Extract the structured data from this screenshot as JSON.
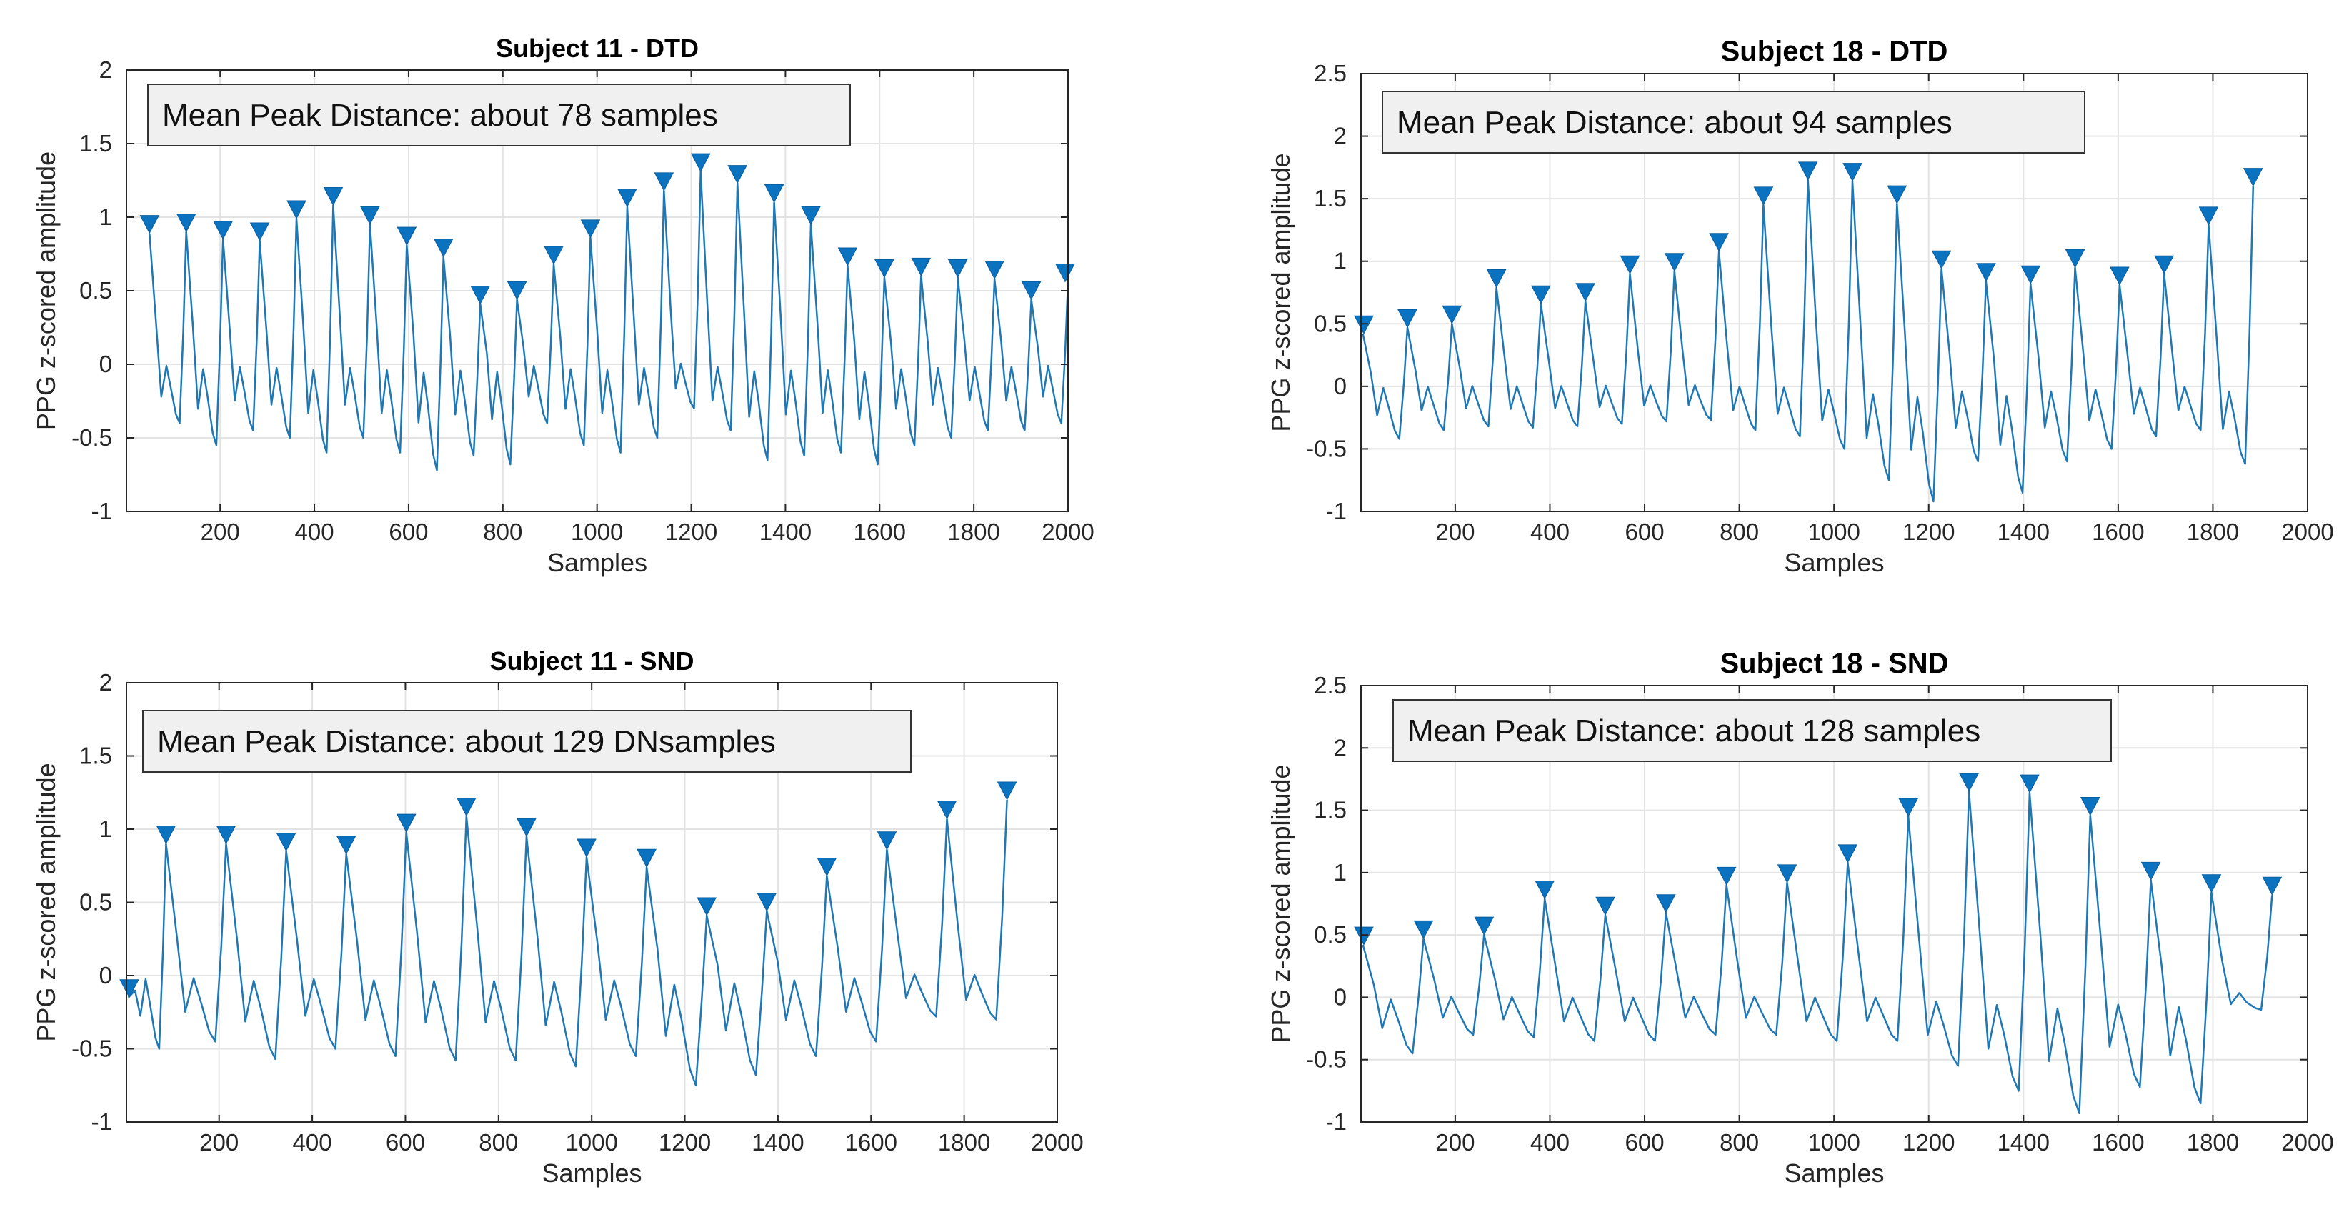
{
  "colors": {
    "line": "#1f77b4",
    "marker": "#0b72c0",
    "grid": "#e3e3e3",
    "axis": "#262626",
    "annotation_bg": "#f0f0f0"
  },
  "icons": {
    "peak_marker": "down-triangle"
  },
  "chart_data": [
    {
      "type": "line",
      "title": "Subject 11 - DTD",
      "xlabel": "Samples",
      "ylabel": "PPG z-scored amplitude",
      "annotation": "Mean Peak Distance: about 78 samples",
      "xlim": [
        1,
        2000
      ],
      "ylim": [
        -1,
        2
      ],
      "xticks": [
        200,
        400,
        600,
        800,
        1000,
        1200,
        1400,
        1600,
        1800,
        2000
      ],
      "yticks": [
        -1,
        -0.5,
        0,
        0.5,
        1,
        1.5,
        2
      ],
      "ytick_labels": [
        "-1",
        "-0.5",
        "0",
        "0.5",
        "1",
        "1.5",
        "2"
      ],
      "grid": true,
      "peaks": {
        "x": [
          50,
          128,
          206,
          284,
          362,
          440,
          518,
          596,
          674,
          752,
          830,
          908,
          986,
          1064,
          1142,
          1220,
          1298,
          1376,
          1454,
          1532,
          1610,
          1688,
          1766,
          1844,
          1922,
          2000
        ],
        "y": [
          0.89,
          0.9,
          0.85,
          0.84,
          0.99,
          1.08,
          0.95,
          0.81,
          0.73,
          0.41,
          0.44,
          0.68,
          0.86,
          1.07,
          1.18,
          1.31,
          1.23,
          1.1,
          0.95,
          0.67,
          0.59,
          0.6,
          0.59,
          0.58,
          0.44,
          0.56
        ],
        "trough": [
          -0.5,
          -0.4,
          -0.55,
          -0.45,
          -0.5,
          -0.6,
          -0.5,
          -0.6,
          -0.72,
          -0.62,
          -0.68,
          -0.4,
          -0.55,
          -0.6,
          -0.5,
          -0.3,
          -0.45,
          -0.65,
          -0.62,
          -0.6,
          -0.68,
          -0.55,
          -0.5,
          -0.45,
          -0.45,
          -0.4
        ]
      }
    },
    {
      "type": "line",
      "title": "Subject 18 - DTD",
      "xlabel": "Samples",
      "ylabel": "PPG z-scored amplitude",
      "annotation": "Mean Peak Distance: about 94 samples",
      "xlim": [
        1,
        2000
      ],
      "ylim": [
        -1,
        2.5
      ],
      "xticks": [
        200,
        400,
        600,
        800,
        1000,
        1200,
        1400,
        1600,
        1800,
        2000
      ],
      "yticks": [
        -1,
        -0.5,
        0,
        0.5,
        1,
        1.5,
        2,
        2.5
      ],
      "ytick_labels": [
        "-1",
        "-0.5",
        "0",
        "0.5",
        "1",
        "1.5",
        "2",
        "2.5"
      ],
      "grid": true,
      "peaks": {
        "x": [
          5,
          99,
          193,
          287,
          381,
          475,
          569,
          663,
          757,
          851,
          945,
          1039,
          1133,
          1227,
          1321,
          1415,
          1509,
          1603,
          1697,
          1791,
          1885
        ],
        "y": [
          0.42,
          0.47,
          0.5,
          0.79,
          0.66,
          0.68,
          0.9,
          0.92,
          1.08,
          1.45,
          1.65,
          1.64,
          1.46,
          0.94,
          0.84,
          0.82,
          0.95,
          0.81,
          0.9,
          1.29,
          1.6
        ],
        "trough": [
          -0.33,
          -0.42,
          -0.35,
          -0.32,
          -0.33,
          -0.32,
          -0.3,
          -0.28,
          -0.27,
          -0.35,
          -0.4,
          -0.5,
          -0.75,
          -0.92,
          -0.6,
          -0.85,
          -0.6,
          -0.5,
          -0.4,
          -0.35,
          -0.62
        ]
      }
    },
    {
      "type": "line",
      "title": "Subject 11 - SND",
      "xlabel": "Samples",
      "ylabel": "PPG z-scored amplitude",
      "annotation": "Mean Peak Distance: about 129 DNsamples",
      "xlim": [
        1,
        2000
      ],
      "ylim": [
        -1,
        2
      ],
      "xticks": [
        200,
        400,
        600,
        800,
        1000,
        1200,
        1400,
        1600,
        1800,
        2000
      ],
      "yticks": [
        -1,
        -0.5,
        0,
        0.5,
        1,
        1.5,
        2
      ],
      "ytick_labels": [
        "-1",
        "-0.5",
        "0",
        "0.5",
        "1",
        "1.5",
        "2"
      ],
      "grid": true,
      "peaks": {
        "x": [
          5,
          86,
          215,
          344,
          473,
          602,
          731,
          860,
          989,
          1118,
          1247,
          1376,
          1505,
          1634,
          1763,
          1892
        ],
        "y": [
          -0.15,
          0.9,
          0.9,
          0.85,
          0.83,
          0.98,
          1.09,
          0.95,
          0.81,
          0.74,
          0.41,
          0.44,
          0.68,
          0.86,
          1.07,
          1.2
        ],
        "trough": [
          -0.5,
          -0.5,
          -0.45,
          -0.57,
          -0.5,
          -0.55,
          -0.58,
          -0.58,
          -0.62,
          -0.55,
          -0.75,
          -0.68,
          -0.55,
          -0.45,
          -0.28,
          -0.3
        ]
      }
    },
    {
      "type": "line",
      "title": "Subject 18 - SND",
      "xlabel": "Samples",
      "ylabel": "PPG z-scored amplitude",
      "annotation": "Mean Peak Distance: about 128 samples",
      "xlim": [
        1,
        2000
      ],
      "ylim": [
        -1,
        2.5
      ],
      "xticks": [
        200,
        400,
        600,
        800,
        1000,
        1200,
        1400,
        1600,
        1800,
        2000
      ],
      "yticks": [
        -1,
        -0.5,
        0,
        0.5,
        1,
        1.5,
        2,
        2.5
      ],
      "ytick_labels": [
        "-1",
        "-0.5",
        "0",
        "0.5",
        "1",
        "1.5",
        "2",
        "2.5"
      ],
      "grid": true,
      "peaks": {
        "x": [
          5,
          133,
          261,
          389,
          517,
          645,
          773,
          901,
          1029,
          1157,
          1285,
          1413,
          1541,
          1669,
          1797,
          1925
        ],
        "y": [
          0.42,
          0.47,
          0.5,
          0.79,
          0.66,
          0.68,
          0.9,
          0.92,
          1.08,
          1.45,
          1.65,
          1.64,
          1.46,
          0.94,
          0.84,
          0.82
        ],
        "trough": [
          -0.35,
          -0.45,
          -0.3,
          -0.32,
          -0.35,
          -0.35,
          -0.3,
          -0.3,
          -0.35,
          -0.35,
          -0.55,
          -0.75,
          -0.93,
          -0.72,
          -0.85,
          -0.1
        ]
      }
    }
  ]
}
